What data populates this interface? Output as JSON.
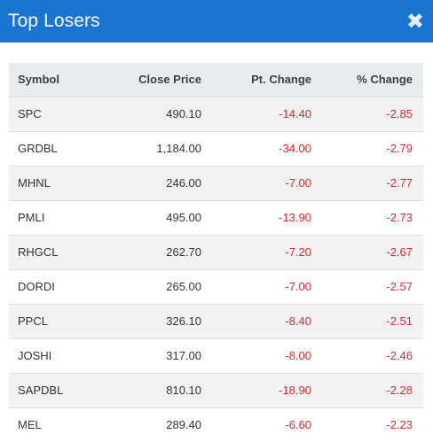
{
  "header": {
    "title": "Top Losers",
    "close_icon": "close-icon"
  },
  "columns": [
    "Symbol",
    "Close Price",
    "Pt. Change",
    "% Change"
  ],
  "rows": [
    {
      "symbol": "SPC",
      "close": "490.10",
      "pt": "-14.40",
      "pct": "-2.85"
    },
    {
      "symbol": "GRDBL",
      "close": "1,184.00",
      "pt": "-34.00",
      "pct": "-2.79"
    },
    {
      "symbol": "MHNL",
      "close": "246.00",
      "pt": "-7.00",
      "pct": "-2.77"
    },
    {
      "symbol": "PMLI",
      "close": "495.00",
      "pt": "-13.90",
      "pct": "-2.73"
    },
    {
      "symbol": "RHGCL",
      "close": "262.70",
      "pt": "-7.20",
      "pct": "-2.67"
    },
    {
      "symbol": "DORDI",
      "close": "265.00",
      "pt": "-7.00",
      "pct": "-2.57"
    },
    {
      "symbol": "PPCL",
      "close": "326.10",
      "pt": "-8.40",
      "pct": "-2.51"
    },
    {
      "symbol": "JOSHI",
      "close": "317.00",
      "pt": "-8.00",
      "pct": "-2.46"
    },
    {
      "symbol": "SAPDBL",
      "close": "810.10",
      "pt": "-18.90",
      "pct": "-2.28"
    },
    {
      "symbol": "MEL",
      "close": "289.40",
      "pt": "-6.60",
      "pct": "-2.23"
    }
  ],
  "colors": {
    "header": "#1a74d1",
    "negative": "#e0272b",
    "stripe": "#f2f2f2",
    "thead": "#e9ecef"
  }
}
